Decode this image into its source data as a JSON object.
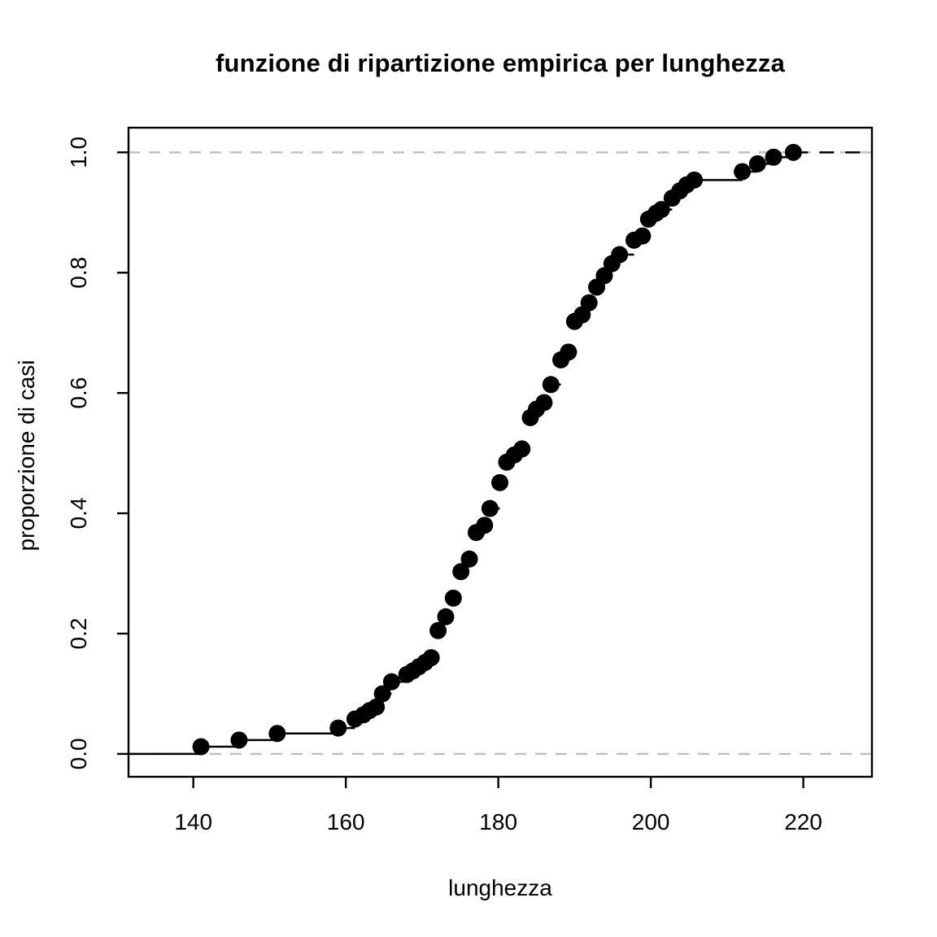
{
  "chart_data": {
    "type": "line",
    "subtype": "ecdf_step_with_points",
    "title": "funzione di ripartizione empirica per lunghezza",
    "xlabel": "lunghezza",
    "ylabel": "proporzione di casi",
    "x_ticks": [
      140,
      160,
      180,
      200,
      220
    ],
    "y_ticks": [
      "0.0",
      "0.2",
      "0.4",
      "0.6",
      "0.8",
      "1.0"
    ],
    "y_tick_values": [
      0,
      0.2,
      0.4,
      0.6,
      0.8,
      1.0
    ],
    "xlim": [
      131.5,
      229
    ],
    "ylim": [
      -0.038,
      1.041
    ],
    "grid": false,
    "legend": "none",
    "reference_lines": [
      {
        "y": 0,
        "style": "dashed",
        "color": "#bebebe"
      },
      {
        "y": 1,
        "style": "dashed",
        "color": "#bebebe"
      }
    ],
    "colors": {
      "points": "#000000",
      "steps": "#000000",
      "axis": "#000000",
      "reference": "#bebebe"
    },
    "points": [
      [
        141,
        0.012
      ],
      [
        146,
        0.023
      ],
      [
        151,
        0.034
      ],
      [
        159,
        0.043
      ],
      [
        161.2,
        0.058
      ],
      [
        162.3,
        0.065
      ],
      [
        163.1,
        0.072
      ],
      [
        164,
        0.078
      ],
      [
        164.8,
        0.1
      ],
      [
        166,
        0.12
      ],
      [
        168,
        0.132
      ],
      [
        168.8,
        0.138
      ],
      [
        169.6,
        0.145
      ],
      [
        170.4,
        0.152
      ],
      [
        171.2,
        0.16
      ],
      [
        172.1,
        0.205
      ],
      [
        173.1,
        0.228
      ],
      [
        174.1,
        0.259
      ],
      [
        175.1,
        0.303
      ],
      [
        176.2,
        0.324
      ],
      [
        177.1,
        0.368
      ],
      [
        178.2,
        0.38
      ],
      [
        178.9,
        0.408
      ],
      [
        180.2,
        0.451
      ],
      [
        181.1,
        0.485
      ],
      [
        182.1,
        0.497
      ],
      [
        183.1,
        0.507
      ],
      [
        184.2,
        0.559
      ],
      [
        185,
        0.573
      ],
      [
        186,
        0.584
      ],
      [
        186.9,
        0.614
      ],
      [
        188.2,
        0.655
      ],
      [
        189.2,
        0.668
      ],
      [
        190,
        0.719
      ],
      [
        191,
        0.73
      ],
      [
        191.9,
        0.75
      ],
      [
        192.9,
        0.776
      ],
      [
        193.9,
        0.795
      ],
      [
        194.9,
        0.815
      ],
      [
        195.9,
        0.83
      ],
      [
        197.8,
        0.854
      ],
      [
        198.9,
        0.861
      ],
      [
        199.7,
        0.889
      ],
      [
        200.7,
        0.899
      ],
      [
        201.4,
        0.905
      ],
      [
        202.8,
        0.924
      ],
      [
        203.8,
        0.936
      ],
      [
        204.7,
        0.946
      ],
      [
        205.7,
        0.954
      ],
      [
        212,
        0.968
      ],
      [
        214,
        0.981
      ],
      [
        216.1,
        0.992
      ],
      [
        218.7,
        1.0
      ]
    ]
  }
}
